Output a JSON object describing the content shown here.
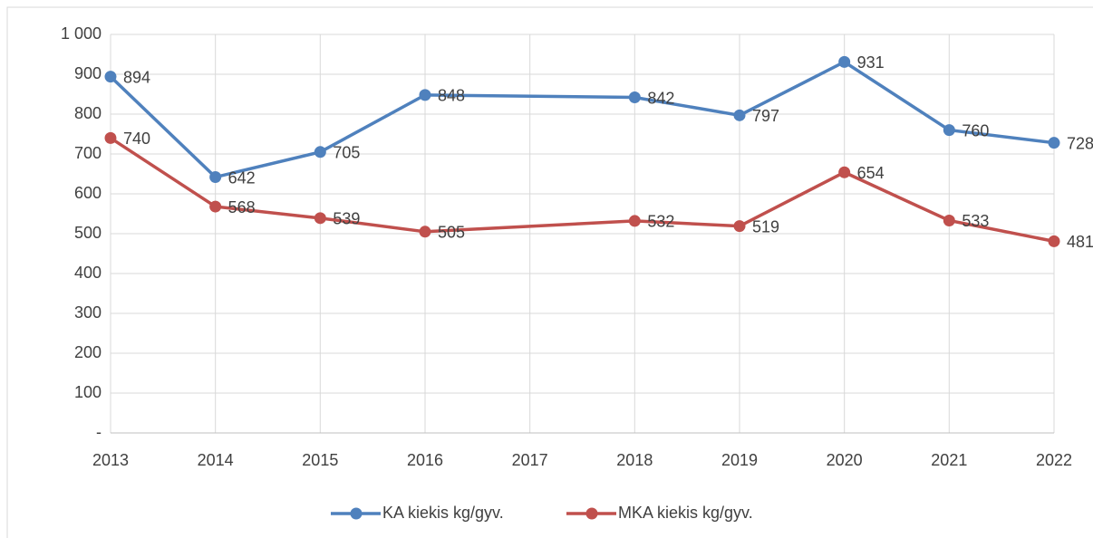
{
  "chart_data": {
    "type": "line",
    "x": [
      2013,
      2014,
      2015,
      2016,
      2018,
      2019,
      2020,
      2021,
      2022
    ],
    "xlim": [
      2013,
      2022
    ],
    "xticks": [
      2013,
      2014,
      2015,
      2016,
      2017,
      2018,
      2019,
      2020,
      2021,
      2022
    ],
    "ylim": [
      0,
      1000
    ],
    "yticks": [
      {
        "value": 0,
        "label": "-"
      },
      100,
      200,
      300,
      400,
      500,
      600,
      700,
      800,
      900,
      {
        "value": 1000,
        "label": "1 000"
      }
    ],
    "grid": true,
    "legend": "bottom",
    "series": [
      {
        "name": "KA kiekis kg/gyv.",
        "color": "#4f81bd",
        "values": [
          894,
          642,
          705,
          848,
          842,
          797,
          931,
          760,
          728
        ]
      },
      {
        "name": "MKA kiekis kg/gyv.",
        "color": "#c0504d",
        "values": [
          740,
          568,
          539,
          505,
          532,
          519,
          654,
          533,
          481
        ]
      }
    ]
  }
}
